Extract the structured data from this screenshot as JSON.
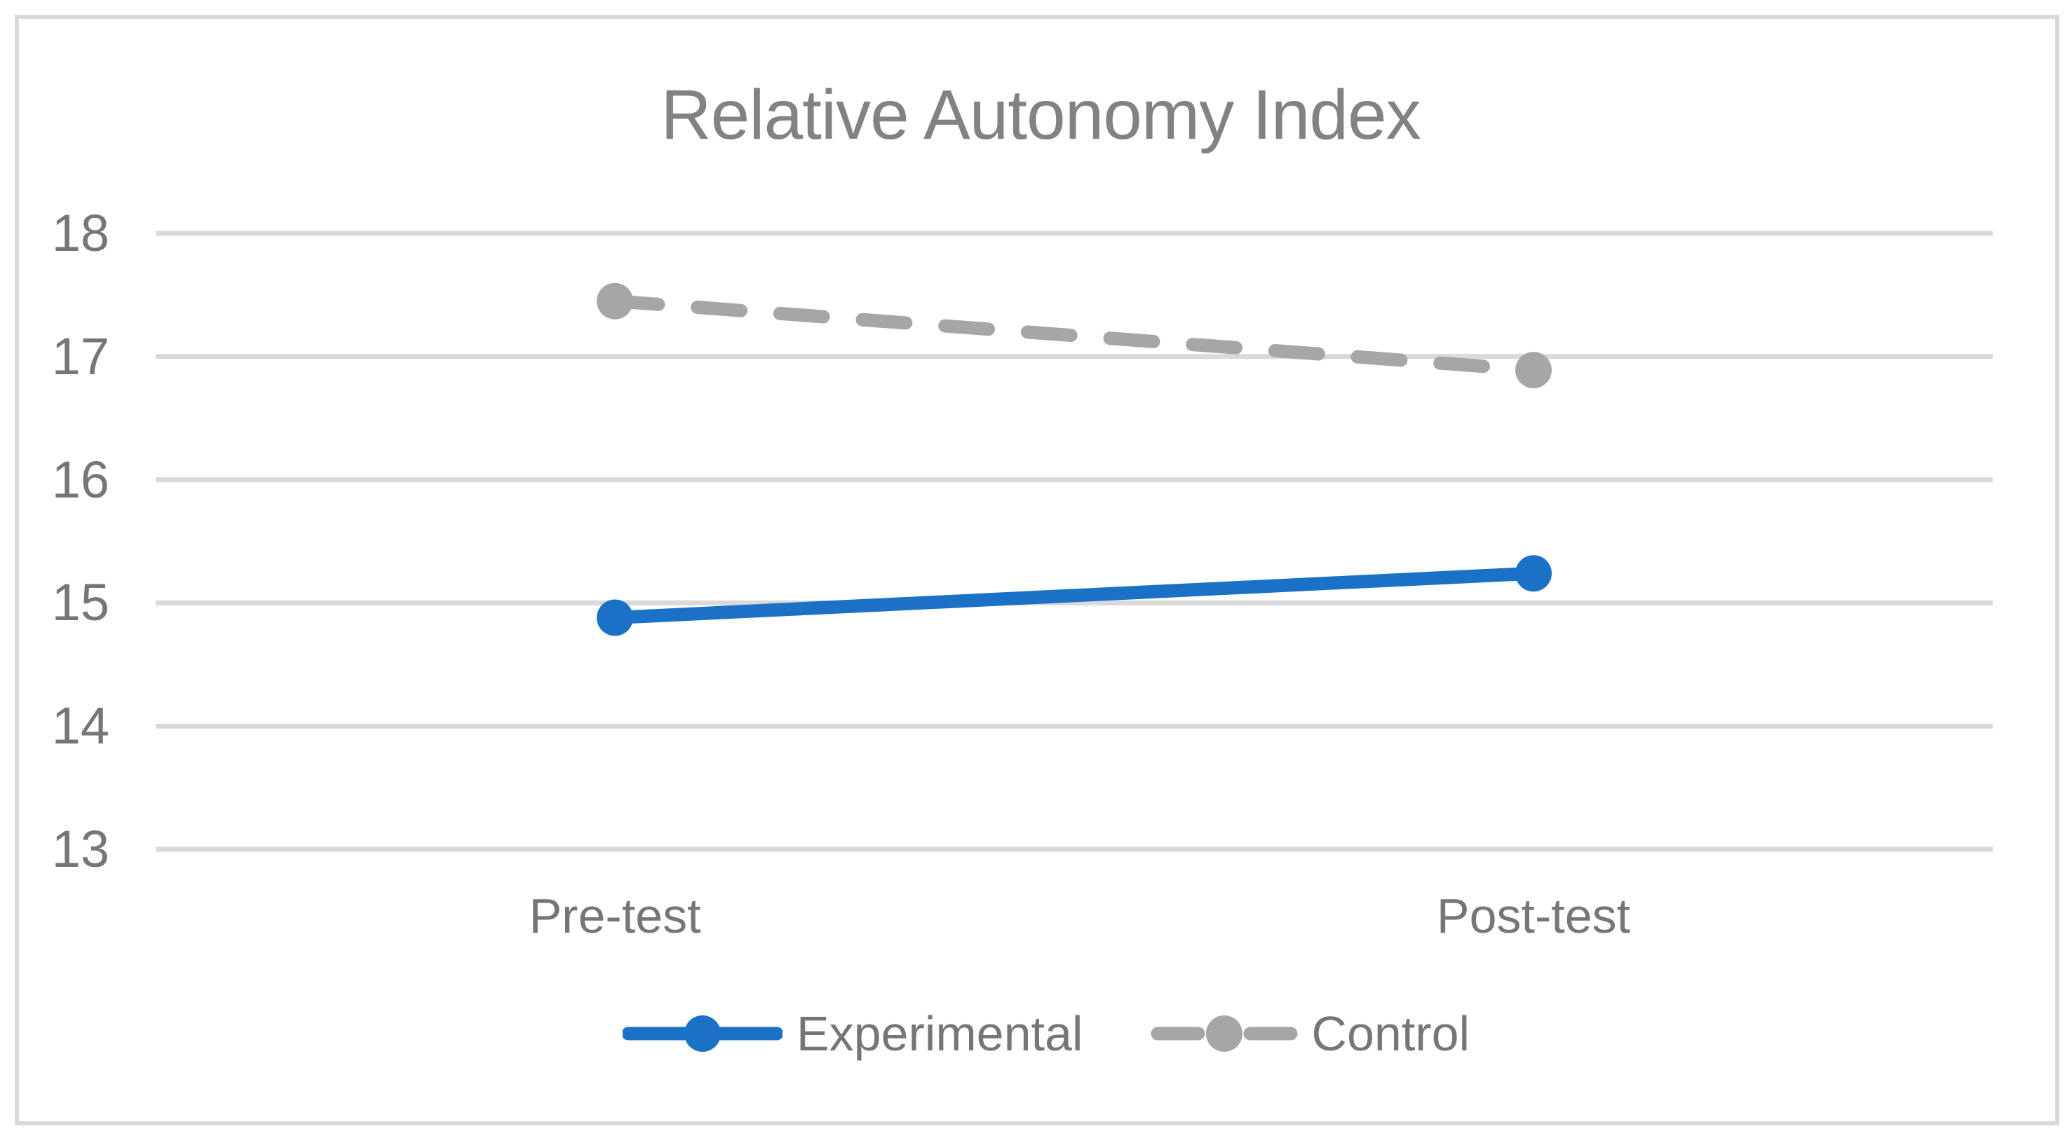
{
  "chart_data": {
    "type": "line",
    "title": "Relative Autonomy Index",
    "categories": [
      "Pre-test",
      "Post-test"
    ],
    "series": [
      {
        "name": "Experimental",
        "values": [
          14.88,
          15.24
        ],
        "color": "#1B71C6",
        "line_style": "solid",
        "marker": "circle"
      },
      {
        "name": "Control",
        "values": [
          17.45,
          16.89
        ],
        "color": "#A6A6A6",
        "line_style": "dashed",
        "marker": "circle"
      }
    ],
    "xlabel": "",
    "ylabel": "",
    "ylim": [
      13,
      18
    ],
    "yticks": [
      18,
      17,
      16,
      15,
      14,
      13
    ],
    "grid": "horizontal",
    "legend_position": "bottom"
  },
  "colors": {
    "series_experimental": "#1B71C6",
    "series_control": "#A6A6A6",
    "gridline": "#D9D9D9",
    "frame_border": "#D9D9D9",
    "title_text": "#828282",
    "label_text": "#767676",
    "background": "#FFFFFF"
  }
}
